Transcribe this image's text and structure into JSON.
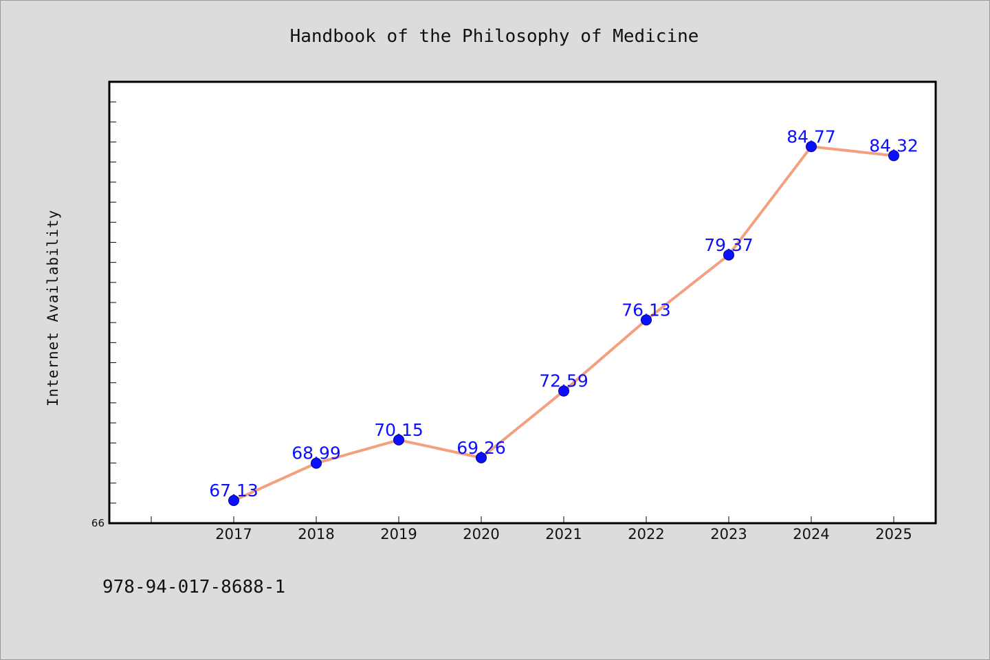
{
  "chart_data": {
    "type": "line",
    "title": "Handbook of the Philosophy of Medicine",
    "xlabel": "",
    "ylabel": "Internet Availability",
    "categories": [
      "2017",
      "2018",
      "2019",
      "2020",
      "2021",
      "2022",
      "2023",
      "2024",
      "2025"
    ],
    "values": [
      67.13,
      68.99,
      70.15,
      69.26,
      72.59,
      76.13,
      79.37,
      84.77,
      84.32
    ],
    "data_labels": [
      "67.13",
      "68.99",
      "70.15",
      "69.26",
      "72.59",
      "76.13",
      "79.37",
      "84.77",
      "84.32"
    ],
    "ylim": [
      66,
      88
    ],
    "y_tick_labels": [
      "66"
    ],
    "grid": false,
    "line_color": "#f4a07f",
    "marker_color": "#0a10ff",
    "label_color": "#0a10ff",
    "plot_background": "#ffffff",
    "figure_background": "#dcdcdc"
  },
  "footer": {
    "isbn": "978-94-017-8688-1"
  }
}
